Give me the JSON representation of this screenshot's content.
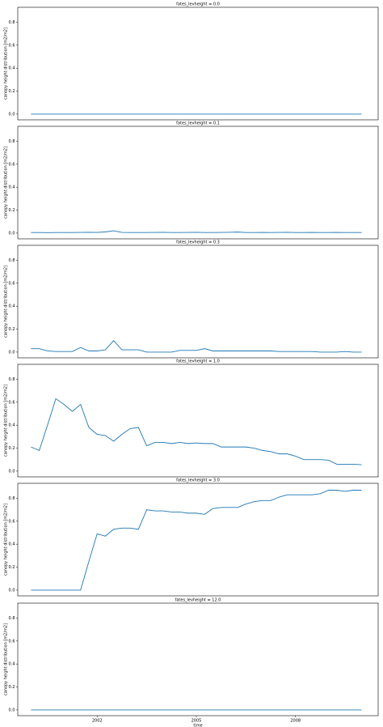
{
  "chart_data": [
    {
      "type": "line",
      "title": "fates_levheight = 0.0",
      "ylabel": "canopy height distribution [m2/m2]",
      "x": [
        2000,
        2000.25,
        2000.5,
        2000.75,
        2001,
        2001.25,
        2001.5,
        2001.75,
        2002,
        2002.25,
        2002.5,
        2002.75,
        2003,
        2003.25,
        2003.5,
        2003.75,
        2004,
        2004.25,
        2004.5,
        2004.75,
        2005,
        2005.25,
        2005.5,
        2005.75,
        2006,
        2006.25,
        2006.5,
        2006.75,
        2007,
        2007.25,
        2007.5,
        2007.75,
        2008,
        2008.25,
        2008.5,
        2008.75,
        2009,
        2009.25,
        2009.5,
        2009.75,
        2010
      ],
      "series": [
        {
          "color": "#1f77b4",
          "values": [
            0,
            0,
            0,
            0,
            0,
            0,
            0,
            0,
            0,
            0,
            0,
            0,
            0,
            0,
            0,
            0,
            0,
            0,
            0,
            0,
            0,
            0,
            0,
            0,
            0,
            0,
            0,
            0,
            0,
            0,
            0,
            0,
            0,
            0,
            0,
            0,
            0,
            0,
            0,
            0,
            0
          ]
        }
      ],
      "xlim": [
        1999.6,
        2010.5
      ],
      "ylim": [
        -0.05,
        0.93
      ],
      "yticks": [
        {
          "value": 0,
          "label": "0.0"
        },
        {
          "value": 0.2,
          "label": "0.2"
        },
        {
          "value": 0.4,
          "label": "0.4"
        },
        {
          "value": 0.6,
          "label": "0.6"
        },
        {
          "value": 0.8,
          "label": "0.8"
        }
      ]
    },
    {
      "type": "line",
      "title": "fates_levheight = 0.1",
      "ylabel": "canopy height distribution [m2/m2]",
      "x": [
        2000,
        2000.25,
        2000.5,
        2000.75,
        2001,
        2001.25,
        2001.5,
        2001.75,
        2002,
        2002.25,
        2002.5,
        2002.75,
        2003,
        2003.25,
        2003.5,
        2003.75,
        2004,
        2004.25,
        2004.5,
        2004.75,
        2005,
        2005.25,
        2005.5,
        2005.75,
        2006,
        2006.25,
        2006.5,
        2006.75,
        2007,
        2007.25,
        2007.5,
        2007.75,
        2008,
        2008.25,
        2008.5,
        2008.75,
        2009,
        2009.25,
        2009.5,
        2009.75,
        2010
      ],
      "series": [
        {
          "color": "#1f77b4",
          "values": [
            0.005,
            0.005,
            0.004,
            0.005,
            0.005,
            0.005,
            0.006,
            0.007,
            0.006,
            0.01,
            0.02,
            0.006,
            0.005,
            0.005,
            0.005,
            0.006,
            0.007,
            0.005,
            0.005,
            0.006,
            0.007,
            0.005,
            0.005,
            0.006,
            0.007,
            0.009,
            0.005,
            0.005,
            0.006,
            0.005,
            0.006,
            0.007,
            0.005,
            0.005,
            0.006,
            0.005,
            0.005,
            0.006,
            0.005,
            0.005,
            0.005
          ]
        }
      ],
      "xlim": [
        1999.6,
        2010.5
      ],
      "ylim": [
        -0.05,
        0.93
      ],
      "yticks": [
        {
          "value": 0,
          "label": "0.0"
        },
        {
          "value": 0.2,
          "label": "0.2"
        },
        {
          "value": 0.4,
          "label": "0.4"
        },
        {
          "value": 0.6,
          "label": "0.6"
        },
        {
          "value": 0.8,
          "label": "0.8"
        }
      ]
    },
    {
      "type": "line",
      "title": "fates_levheight = 0.3",
      "ylabel": "canopy height distribution [m2/m2]",
      "x": [
        2000,
        2000.25,
        2000.5,
        2000.75,
        2001,
        2001.25,
        2001.5,
        2001.75,
        2002,
        2002.25,
        2002.5,
        2002.75,
        2003,
        2003.25,
        2003.5,
        2003.75,
        2004,
        2004.25,
        2004.5,
        2004.75,
        2005,
        2005.25,
        2005.5,
        2005.75,
        2006,
        2006.25,
        2006.5,
        2006.75,
        2007,
        2007.25,
        2007.5,
        2007.75,
        2008,
        2008.25,
        2008.5,
        2008.75,
        2009,
        2009.25,
        2009.5,
        2009.75,
        2010
      ],
      "series": [
        {
          "color": "#1f77b4",
          "values": [
            0.03,
            0.03,
            0.01,
            0.005,
            0.005,
            0.005,
            0.04,
            0.01,
            0.01,
            0.02,
            0.1,
            0.02,
            0.02,
            0.02,
            0,
            0,
            0,
            0,
            0.015,
            0.015,
            0.015,
            0.03,
            0.01,
            0.01,
            0.01,
            0.01,
            0.01,
            0.01,
            0.01,
            0.01,
            0.005,
            0.005,
            0.005,
            0.005,
            0.005,
            0,
            0,
            0,
            0.005,
            0,
            0
          ]
        }
      ],
      "xlim": [
        1999.6,
        2010.5
      ],
      "ylim": [
        -0.05,
        0.93
      ],
      "yticks": [
        {
          "value": 0,
          "label": "0.0"
        },
        {
          "value": 0.2,
          "label": "0.2"
        },
        {
          "value": 0.4,
          "label": "0.4"
        },
        {
          "value": 0.6,
          "label": "0.6"
        },
        {
          "value": 0.8,
          "label": "0.8"
        }
      ]
    },
    {
      "type": "line",
      "title": "fates_levheight = 1.0",
      "ylabel": "canopy height distribution [m2/m2]",
      "x": [
        2000,
        2000.25,
        2000.5,
        2000.75,
        2001,
        2001.25,
        2001.5,
        2001.75,
        2002,
        2002.25,
        2002.5,
        2002.75,
        2003,
        2003.25,
        2003.5,
        2003.75,
        2004,
        2004.25,
        2004.5,
        2004.75,
        2005,
        2005.25,
        2005.5,
        2005.75,
        2006,
        2006.25,
        2006.5,
        2006.75,
        2007,
        2007.25,
        2007.5,
        2007.75,
        2008,
        2008.25,
        2008.5,
        2008.75,
        2009,
        2009.25,
        2009.5,
        2009.75,
        2010
      ],
      "series": [
        {
          "color": "#1f77b4",
          "values": [
            0.21,
            0.18,
            0.4,
            0.63,
            0.58,
            0.52,
            0.58,
            0.38,
            0.32,
            0.31,
            0.26,
            0.32,
            0.37,
            0.38,
            0.22,
            0.25,
            0.25,
            0.24,
            0.25,
            0.24,
            0.245,
            0.24,
            0.24,
            0.21,
            0.21,
            0.21,
            0.21,
            0.2,
            0.18,
            0.17,
            0.15,
            0.15,
            0.13,
            0.1,
            0.1,
            0.1,
            0.095,
            0.06,
            0.06,
            0.06,
            0.055
          ]
        }
      ],
      "xlim": [
        1999.6,
        2010.5
      ],
      "ylim": [
        -0.05,
        0.93
      ],
      "yticks": [
        {
          "value": 0,
          "label": "0.0"
        },
        {
          "value": 0.2,
          "label": "0.2"
        },
        {
          "value": 0.4,
          "label": "0.4"
        },
        {
          "value": 0.6,
          "label": "0.6"
        },
        {
          "value": 0.8,
          "label": "0.8"
        }
      ]
    },
    {
      "type": "line",
      "title": "fates_levheight = 3.0",
      "ylabel": "canopy height distribution [m2/m2]",
      "x": [
        2000,
        2000.25,
        2000.5,
        2000.75,
        2001,
        2001.25,
        2001.5,
        2001.75,
        2002,
        2002.25,
        2002.5,
        2002.75,
        2003,
        2003.25,
        2003.5,
        2003.75,
        2004,
        2004.25,
        2004.5,
        2004.75,
        2005,
        2005.25,
        2005.5,
        2005.75,
        2006,
        2006.25,
        2006.5,
        2006.75,
        2007,
        2007.25,
        2007.5,
        2007.75,
        2008,
        2008.25,
        2008.5,
        2008.75,
        2009,
        2009.25,
        2009.5,
        2009.75,
        2010
      ],
      "series": [
        {
          "color": "#1f77b4",
          "values": [
            0,
            0,
            0,
            0,
            0,
            0,
            0,
            0.25,
            0.49,
            0.47,
            0.53,
            0.54,
            0.54,
            0.53,
            0.7,
            0.69,
            0.69,
            0.68,
            0.68,
            0.67,
            0.67,
            0.66,
            0.71,
            0.72,
            0.72,
            0.72,
            0.75,
            0.77,
            0.78,
            0.78,
            0.81,
            0.83,
            0.83,
            0.83,
            0.83,
            0.84,
            0.87,
            0.87,
            0.86,
            0.87,
            0.87
          ]
        }
      ],
      "xlim": [
        1999.6,
        2010.5
      ],
      "ylim": [
        -0.05,
        0.93
      ],
      "yticks": [
        {
          "value": 0,
          "label": "0.0"
        },
        {
          "value": 0.2,
          "label": "0.2"
        },
        {
          "value": 0.4,
          "label": "0.4"
        },
        {
          "value": 0.6,
          "label": "0.6"
        },
        {
          "value": 0.8,
          "label": "0.8"
        }
      ]
    },
    {
      "type": "line",
      "title": "fates_levheight = 12.0",
      "ylabel": "canopy height distribution [m2/m2]",
      "xlabel": "time",
      "x": [
        2000,
        2000.25,
        2000.5,
        2000.75,
        2001,
        2001.25,
        2001.5,
        2001.75,
        2002,
        2002.25,
        2002.5,
        2002.75,
        2003,
        2003.25,
        2003.5,
        2003.75,
        2004,
        2004.25,
        2004.5,
        2004.75,
        2005,
        2005.25,
        2005.5,
        2005.75,
        2006,
        2006.25,
        2006.5,
        2006.75,
        2007,
        2007.25,
        2007.5,
        2007.75,
        2008,
        2008.25,
        2008.5,
        2008.75,
        2009,
        2009.25,
        2009.5,
        2009.75,
        2010
      ],
      "series": [
        {
          "color": "#1f77b4",
          "values": [
            0,
            0,
            0,
            0,
            0,
            0,
            0,
            0,
            0,
            0,
            0,
            0,
            0,
            0,
            0,
            0,
            0,
            0,
            0,
            0,
            0,
            0,
            0,
            0,
            0,
            0,
            0,
            0,
            0,
            0,
            0,
            0,
            0,
            0,
            0,
            0,
            0,
            0,
            0,
            0,
            0
          ]
        }
      ],
      "xlim": [
        1999.6,
        2010.5
      ],
      "ylim": [
        -0.05,
        0.93
      ],
      "xticks": [
        2002,
        2005,
        2008
      ],
      "yticks": [
        {
          "value": 0,
          "label": "0.0"
        },
        {
          "value": 0.2,
          "label": "0.2"
        },
        {
          "value": 0.4,
          "label": "0.4"
        },
        {
          "value": 0.6,
          "label": "0.6"
        },
        {
          "value": 0.8,
          "label": "0.8"
        }
      ]
    }
  ]
}
